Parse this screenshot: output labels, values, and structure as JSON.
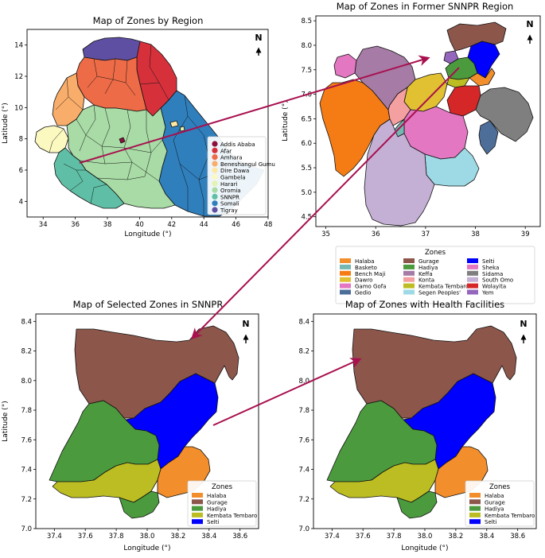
{
  "north_label": "N",
  "colors": {
    "Addis Ababa": "#8e0f3c",
    "Afar": "#d6303b",
    "Amhara": "#ee6b47",
    "Beneshangul Gumu": "#f9ad6a",
    "Dire Dawa": "#fde8a2",
    "Gambela": "#fbf8c0",
    "Harari": "#e4f3b0",
    "Oromia": "#a8dba5",
    "SNNPR": "#5fbfa6",
    "Somali": "#2f7fbd",
    "Tigray": "#5e4fa2",
    "Halaba": "#f28e2b",
    "Basketo": "#76b7b2",
    "Bench Maji": "#f57c14",
    "Dawro": "#e1c032",
    "Gamo Gofa": "#e377c2",
    "Gedio": "#4e6e9a",
    "Gurage": "#8c564b",
    "Hadiya": "#4c9a3e",
    "Keffa": "#a67ba6",
    "Konta": "#f4a0a0",
    "Kembata Tembaro": "#bcbd22",
    "Segen Peoples'": "#9edae5",
    "Selti": "#0000ff",
    "Sheka": "#e377c2",
    "Sidama": "#7f7f7f",
    "South Omo": "#c5b0d5",
    "Wolayita": "#d62728",
    "Yem": "#9467bd",
    "arrow": "#a8104f"
  },
  "maps": [
    {
      "title": "Map of Zones by Region",
      "xlabel": "Longitude (°)",
      "ylabel": "Latitude (°)",
      "xlim": [
        33,
        48
      ],
      "ylim": [
        3,
        15
      ],
      "xticks": [
        34,
        36,
        38,
        40,
        42,
        44,
        46,
        48
      ],
      "yticks": [
        4,
        6,
        8,
        10,
        12,
        14
      ],
      "legend": {
        "title": "",
        "items": [
          "Addis Ababa",
          "Afar",
          "Amhara",
          "Beneshangul Gumu",
          "Dire Dawa",
          "Gambela",
          "Harari",
          "Oromia",
          "SNNPR",
          "Somali",
          "Tigray"
        ]
      }
    },
    {
      "title": "Map of Zones in Former SNNPR Region",
      "xlabel": "",
      "ylabel": "Latitude (°)",
      "xlim": [
        34.8,
        39.3
      ],
      "ylim": [
        4.3,
        8.6
      ],
      "xticks": [
        35,
        36,
        37,
        38,
        39
      ],
      "yticks": [
        4.5,
        5.0,
        5.5,
        6.0,
        6.5,
        7.0,
        7.5,
        8.0,
        8.5
      ],
      "legend": {
        "title": "Zones",
        "items": [
          "Halaba",
          "Basketo",
          "Bench Maji",
          "Dawro",
          "Gamo Gofa",
          "Gedio",
          "Gurage",
          "Hadiya",
          "Keffa",
          "Konta",
          "Kembata Tembaro",
          "Segen Peoples'",
          "Selti",
          "Sheka",
          "Sidama",
          "South Omo",
          "Wolayita",
          "Yem"
        ]
      }
    },
    {
      "title": "Map of Selected Zones in SNNPR",
      "xlabel": "Longitude (°)",
      "ylabel": "Latitude (°)",
      "xlim": [
        37.28,
        38.72
      ],
      "ylim": [
        7.0,
        8.45
      ],
      "xticks": [
        37.4,
        37.6,
        37.8,
        38.0,
        38.2,
        38.4,
        38.6
      ],
      "yticks": [
        7.0,
        7.2,
        7.4,
        7.6,
        7.8,
        8.0,
        8.2,
        8.4
      ],
      "legend": {
        "title": "Zones",
        "items": [
          "Halaba",
          "Gurage",
          "Hadiya",
          "Kembata Tembaro",
          "Selti"
        ]
      }
    },
    {
      "title": "Map of Zones with Health Facilities",
      "xlabel": "Longitude (°)",
      "ylabel": "",
      "xlim": [
        37.28,
        38.72
      ],
      "ylim": [
        7.0,
        8.45
      ],
      "xticks": [
        37.4,
        37.6,
        37.8,
        38.0,
        38.2,
        38.4,
        38.6
      ],
      "yticks": [
        7.0,
        7.2,
        7.4,
        7.6,
        7.8,
        8.0,
        8.2,
        8.4
      ],
      "legend": {
        "title": "Zones",
        "items": [
          "Halaba",
          "Gurage",
          "Hadiya",
          "Kembata Tembaro",
          "Selti"
        ]
      }
    }
  ]
}
